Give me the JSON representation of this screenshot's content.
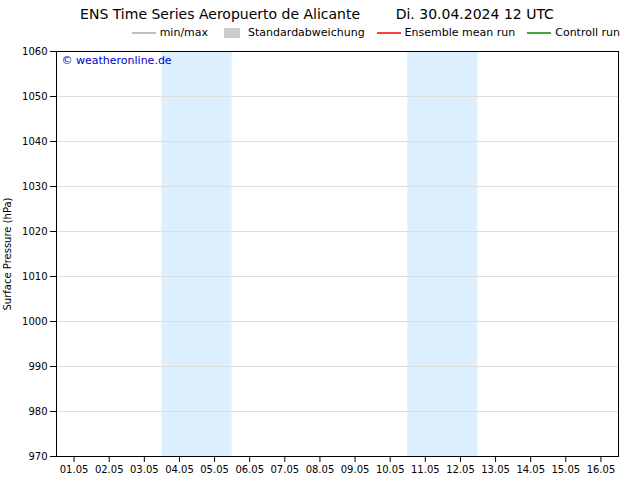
{
  "chart_data": {
    "type": "line",
    "title": "ENS Time Series Aeropuerto de Alicante        Di. 30.04.2024 12 UTC",
    "y_label": "Surface Pressure (hPa)",
    "categories": [
      "01.05",
      "02.05",
      "03.05",
      "04.05",
      "05.05",
      "06.05",
      "07.05",
      "08.05",
      "09.05",
      "10.05",
      "11.05",
      "12.05",
      "13.05",
      "14.05",
      "15.05",
      "16.05"
    ],
    "series": [
      {
        "name": "min/max",
        "color": "#aaaaaa",
        "type": "line",
        "values": [
          null,
          null,
          null,
          null,
          null,
          null,
          null,
          null,
          null,
          null,
          null,
          null,
          null,
          null,
          null,
          null
        ]
      },
      {
        "name": "Standardabweichung",
        "color": "#cccccc",
        "type": "area",
        "values": [
          null,
          null,
          null,
          null,
          null,
          null,
          null,
          null,
          null,
          null,
          null,
          null,
          null,
          null,
          null,
          null
        ]
      },
      {
        "name": "Ensemble mean run",
        "color": "#ff0000",
        "type": "line",
        "values": [
          null,
          null,
          null,
          null,
          null,
          null,
          null,
          null,
          null,
          null,
          null,
          null,
          null,
          null,
          null,
          null
        ]
      },
      {
        "name": "Controll run",
        "color": "#008800",
        "type": "line",
        "values": [
          null,
          null,
          null,
          null,
          null,
          null,
          null,
          null,
          null,
          null,
          null,
          null,
          null,
          null,
          null,
          null
        ]
      }
    ],
    "shaded": [
      [
        "04.05",
        "05.05"
      ],
      [
        "11.05",
        "12.05"
      ]
    ],
    "shade_color": "#ddeeff",
    "annotations": [
      {
        "text": "© weatheronline.de",
        "color": "#0000cc"
      }
    ],
    "ylim": [
      970,
      1060
    ],
    "yticks": [
      970,
      980,
      990,
      1000,
      1010,
      1020,
      1030,
      1040,
      1050,
      1060
    ],
    "grid": true,
    "legend": "upper right"
  }
}
